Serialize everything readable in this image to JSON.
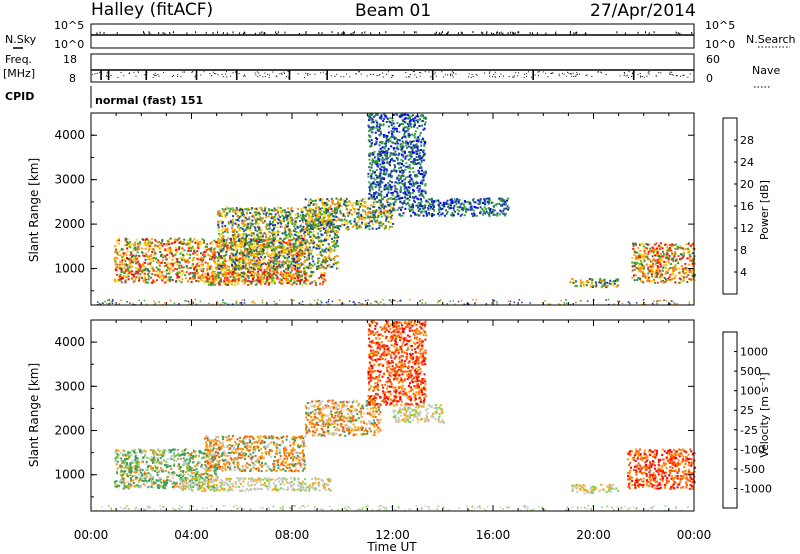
{
  "header": {
    "station": "Halley (fitACF)",
    "beam": "Beam 01",
    "date": "27/Apr/2014"
  },
  "panels": {
    "nsky_label": "N.Sky",
    "nsky_ticks": [
      "10^5",
      "10^0"
    ],
    "nsearch_label": "N.Search",
    "nsearch_ticks": [
      "10^5",
      "10^0"
    ],
    "freq_label_1": "Freq.",
    "freq_label_2": "[MHz]",
    "freq_ticks": [
      "18",
      "8"
    ],
    "nave_label": "Nave",
    "nave_ticks": [
      "60",
      "0"
    ],
    "cpid_label": "CPID",
    "cpid_text": "normal (fast) 151"
  },
  "chart_data": [
    {
      "type": "heatmap",
      "title": "",
      "xlabel": "Time UT",
      "ylabel": "Slant Range [km]",
      "x_ticks": [
        "00:00",
        "04:00",
        "08:00",
        "12:00",
        "16:00",
        "20:00",
        "00:00"
      ],
      "y_ticks": [
        "1000",
        "2000",
        "3000",
        "4000"
      ],
      "ylim": [
        180,
        4500
      ],
      "colorbar": {
        "label": "Power [dB]",
        "ticks": [
          "28",
          "24",
          "20",
          "16",
          "12",
          "8",
          "4"
        ],
        "colors": [
          "#0000ff",
          "#1a3aa8",
          "#2a7a55",
          "#3aaa30",
          "#ffd700",
          "#ff8c00",
          "#ff3b1e",
          "#ff0000"
        ]
      },
      "echo_regions": [
        {
          "t_start": 0.9,
          "t_end": 8.5,
          "r_low": 700,
          "r_high": 1700,
          "level": "high"
        },
        {
          "t_start": 5.0,
          "t_end": 9.8,
          "r_low": 1000,
          "r_high": 2400,
          "level": "mid"
        },
        {
          "t_start": 8.5,
          "t_end": 12.0,
          "r_low": 1900,
          "r_high": 2600,
          "level": "mid"
        },
        {
          "t_start": 12.0,
          "t_end": 16.6,
          "r_low": 2200,
          "r_high": 2600,
          "level": "low"
        },
        {
          "t_start": 11.0,
          "t_end": 13.3,
          "r_low": 2600,
          "r_high": 4500,
          "level": "low"
        },
        {
          "t_start": 4.5,
          "t_end": 9.3,
          "r_low": 650,
          "r_high": 950,
          "level": "high"
        },
        {
          "t_start": 19.0,
          "t_end": 21.0,
          "r_low": 600,
          "r_high": 800,
          "level": "mid"
        },
        {
          "t_start": 21.5,
          "t_end": 24.0,
          "r_low": 700,
          "r_high": 1600,
          "level": "high"
        }
      ]
    },
    {
      "type": "heatmap",
      "title": "",
      "xlabel": "Time UT",
      "ylabel": "Slant Range [km]",
      "x_ticks": [
        "00:00",
        "04:00",
        "08:00",
        "12:00",
        "16:00",
        "20:00",
        "00:00"
      ],
      "y_ticks": [
        "1000",
        "2000",
        "3000",
        "4000"
      ],
      "ylim": [
        180,
        4500
      ],
      "colorbar": {
        "label": "Velocity [m s⁻¹]",
        "ticks": [
          "1000",
          "500",
          "100",
          "25",
          "-25",
          "-100",
          "-500",
          "-1000"
        ],
        "colors": [
          "#ff0000",
          "#ff5500",
          "#ff8c00",
          "#ffa500",
          "#c8c8c8",
          "#7ad24a",
          "#3a9a5a",
          "#1a5aa0",
          "#1a3ad0"
        ]
      },
      "echo_regions": [
        {
          "t_start": 0.9,
          "t_end": 5.0,
          "r_low": 700,
          "r_high": 1600,
          "level": "green"
        },
        {
          "t_start": 4.5,
          "t_end": 8.5,
          "r_low": 1100,
          "r_high": 1900,
          "level": "orange"
        },
        {
          "t_start": 8.5,
          "t_end": 11.5,
          "r_low": 1900,
          "r_high": 2700,
          "level": "orange"
        },
        {
          "t_start": 12.0,
          "t_end": 14.0,
          "r_low": 2200,
          "r_high": 2600,
          "level": "grey"
        },
        {
          "t_start": 11.0,
          "t_end": 13.3,
          "r_low": 2600,
          "r_high": 4500,
          "level": "red"
        },
        {
          "t_start": 3.5,
          "t_end": 9.5,
          "r_low": 650,
          "r_high": 950,
          "level": "grey"
        },
        {
          "t_start": 19.0,
          "t_end": 21.0,
          "r_low": 600,
          "r_high": 800,
          "level": "mixed"
        },
        {
          "t_start": 21.3,
          "t_end": 24.0,
          "r_low": 700,
          "r_high": 1600,
          "level": "red"
        }
      ]
    }
  ]
}
